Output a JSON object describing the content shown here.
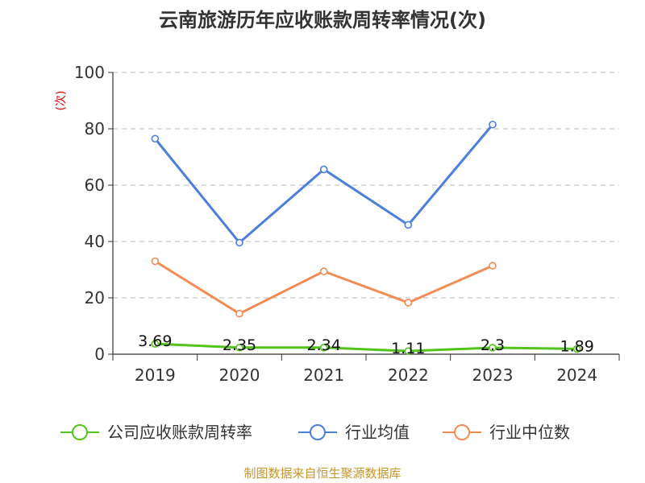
{
  "chart_data": {
    "type": "line",
    "title": "云南旅游历年应收账款周转率情况(次)",
    "ylabel": "(次)",
    "xlabel": "",
    "categories": [
      "2019",
      "2020",
      "2021",
      "2022",
      "2023",
      "2024"
    ],
    "ylim": [
      0,
      100
    ],
    "yticks": [
      0,
      20,
      40,
      60,
      80,
      100
    ],
    "grid": true,
    "legend_position": "bottom",
    "series": [
      {
        "name": "公司应收账款周转率",
        "color": "#52c41a",
        "values": [
          3.69,
          2.35,
          2.34,
          1.11,
          2.3,
          1.89
        ],
        "labels": [
          "3.69",
          "2.35",
          "2.34",
          "1.11",
          "2.3",
          "1.89"
        ]
      },
      {
        "name": "行业均值",
        "color": "#4a7fdb",
        "values": [
          76.5,
          39.6,
          65.6,
          45.9,
          81.5,
          null
        ]
      },
      {
        "name": "行业中位数",
        "color": "#f28c55",
        "values": [
          33.0,
          14.4,
          29.4,
          18.3,
          31.4,
          null
        ]
      }
    ]
  },
  "source": {
    "text": "制图数据来自恒生聚源数据库",
    "color": "#c8952a"
  }
}
